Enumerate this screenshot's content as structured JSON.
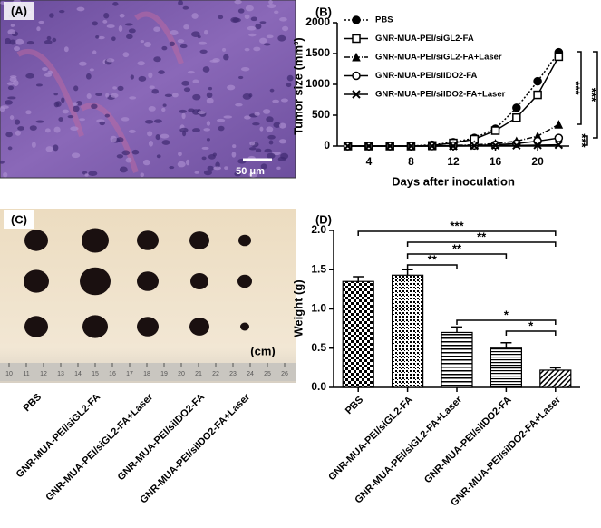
{
  "panel_a": {
    "label": "(A)",
    "scale_bar": "50 μm"
  },
  "panel_c": {
    "label": "(C)",
    "unit": "(cm)",
    "ruler": [
      "10",
      "11",
      "12",
      "13",
      "14",
      "15",
      "16",
      "17",
      "18",
      "19",
      "20",
      "21",
      "22",
      "23",
      "24",
      "25",
      "26"
    ],
    "categories": [
      "PBS",
      "GNR-MUA-PEI/siGL2-FA",
      "GNR-MUA-PEI/siGL2-FA+Laser",
      "GNR-MUA-PEI/siIDO2-FA",
      "GNR-MUA-PEI/siIDO2-FA+Laser"
    ]
  },
  "chart_data": [
    {
      "panel": "(B)",
      "type": "line",
      "x": [
        2,
        4,
        6,
        8,
        10,
        12,
        14,
        16,
        18,
        20,
        22
      ],
      "series": [
        {
          "name": "PBS",
          "color": "#000",
          "marker": "circle-filled",
          "dash": "2,2",
          "values": [
            0,
            0,
            0,
            0,
            20,
            60,
            130,
            280,
            620,
            1050,
            1520
          ]
        },
        {
          "name": "GNR-MUA-PEI/siGL2-FA",
          "color": "#000",
          "marker": "square-open",
          "dash": "none",
          "values": [
            0,
            0,
            0,
            0,
            10,
            50,
            110,
            250,
            460,
            830,
            1450
          ]
        },
        {
          "name": "GNR-MUA-PEI/siGL2-FA+Laser",
          "color": "#000",
          "marker": "triangle-filled",
          "dash": "6,2,1,2",
          "values": [
            0,
            0,
            0,
            0,
            0,
            10,
            20,
            40,
            80,
            160,
            350
          ]
        },
        {
          "name": "GNR-MUA-PEI/siIDO2-FA",
          "color": "#000",
          "marker": "circle-open",
          "dash": "none",
          "values": [
            0,
            0,
            0,
            0,
            0,
            5,
            10,
            20,
            40,
            80,
            130
          ]
        },
        {
          "name": "GNR-MUA-PEI/siIDO2-FA+Laser",
          "color": "#000",
          "marker": "cross",
          "dash": "none",
          "values": [
            0,
            0,
            0,
            0,
            0,
            0,
            5,
            10,
            10,
            15,
            20
          ]
        }
      ],
      "xlim": [
        1,
        23
      ],
      "ylim": [
        0,
        2000
      ],
      "xticks": [
        4,
        8,
        12,
        16,
        20
      ],
      "yticks": [
        0,
        500,
        1000,
        1500,
        2000
      ],
      "xlabel": "Days after inoculation",
      "ylabel": "Tumor size (mm³)",
      "annotations": [
        "***",
        "***",
        "***"
      ],
      "legend": "upper left"
    },
    {
      "panel": "(D)",
      "type": "bar",
      "categories": [
        "PBS",
        "GNR-MUA-PEI/siGL2-FA",
        "GNR-MUA-PEI/siGL2-FA+Laser",
        "GNR-MUA-PEI/siIDO2-FA",
        "GNR-MUA-PEI/siIDO2-FA+Laser"
      ],
      "values": [
        1.35,
        1.43,
        0.7,
        0.5,
        0.22
      ],
      "errors": [
        0.06,
        0.07,
        0.07,
        0.07,
        0.03
      ],
      "patterns": [
        "checker",
        "dots",
        "hlines",
        "hlines-dense",
        "diagonal"
      ],
      "color": "#000",
      "ylim": [
        0,
        2
      ],
      "yticks": [
        {
          "value": 0,
          "label": "0.0"
        },
        {
          "value": 0.5,
          "label": "0.5"
        },
        {
          "value": 1,
          "label": "1.0"
        },
        {
          "value": 1.5,
          "label": "1.5"
        },
        {
          "value": 2,
          "label": "2.0"
        }
      ],
      "ylabel": "Weight (g)",
      "significance": [
        {
          "label": "***",
          "between": [
            0,
            4
          ]
        },
        {
          "label": "**",
          "between": [
            1,
            4
          ]
        },
        {
          "label": "**",
          "between": [
            1,
            3
          ]
        },
        {
          "label": "**",
          "between": [
            1,
            2
          ]
        },
        {
          "label": "*",
          "between": [
            2,
            4
          ]
        },
        {
          "label": "*",
          "between": [
            3,
            4
          ]
        }
      ]
    }
  ]
}
